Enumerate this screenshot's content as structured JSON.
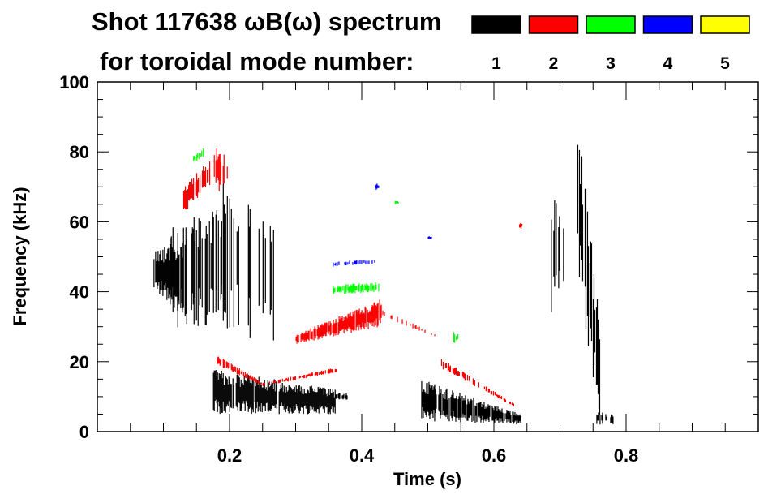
{
  "chart_data": {
    "type": "heatmap",
    "title_line1": "Shot 117638 ωB(ω) spectrum",
    "title_line2": "for toroidal mode number:",
    "xlabel": "Time (s)",
    "ylabel": "Frequency (kHz)",
    "xlim": [
      0.0,
      1.0
    ],
    "ylim": [
      0,
      100
    ],
    "xticks": [
      {
        "v": 0.2,
        "label": "0.2"
      },
      {
        "v": 0.4,
        "label": "0.4"
      },
      {
        "v": 0.6,
        "label": "0.6"
      },
      {
        "v": 0.8,
        "label": "0.8"
      }
    ],
    "yticks": [
      {
        "v": 0,
        "label": "0"
      },
      {
        "v": 20,
        "label": "20"
      },
      {
        "v": 40,
        "label": "40"
      },
      {
        "v": 60,
        "label": "60"
      },
      {
        "v": 80,
        "label": "80"
      },
      {
        "v": 100,
        "label": "100"
      }
    ],
    "legend": [
      {
        "mode": "1",
        "color": "#000000"
      },
      {
        "mode": "2",
        "color": "#ff0000"
      },
      {
        "mode": "3",
        "color": "#00ff00"
      },
      {
        "mode": "4",
        "color": "#0000ff"
      },
      {
        "mode": "5",
        "color": "#ffff00"
      }
    ],
    "features": [
      {
        "mode": "1",
        "t": [
          0.085,
          0.13
        ],
        "lo": [
          40,
          33
        ],
        "hi": [
          52,
          58
        ],
        "density": 0.95
      },
      {
        "mode": "1",
        "t": [
          0.11,
          0.2
        ],
        "lo": [
          30,
          28
        ],
        "hi": [
          58,
          70
        ],
        "density": 0.5
      },
      {
        "mode": "1",
        "t": [
          0.18,
          0.27
        ],
        "lo": [
          30,
          24
        ],
        "hi": [
          74,
          58
        ],
        "density": 0.35
      },
      {
        "mode": "1",
        "t": [
          0.175,
          0.36
        ],
        "lo": [
          5,
          5
        ],
        "hi": [
          18,
          12
        ],
        "density": 0.95
      },
      {
        "mode": "1",
        "t": [
          0.36,
          0.38
        ],
        "lo": [
          9,
          9
        ],
        "hi": [
          11,
          11
        ],
        "density": 0.6
      },
      {
        "mode": "1",
        "t": [
          0.49,
          0.64
        ],
        "lo": [
          3,
          2
        ],
        "hi": [
          15,
          5
        ],
        "density": 0.9
      },
      {
        "mode": "1",
        "t": [
          0.685,
          0.705
        ],
        "lo": [
          32,
          40
        ],
        "hi": [
          68,
          62
        ],
        "density": 0.5
      },
      {
        "mode": "1",
        "t": [
          0.725,
          0.76
        ],
        "lo": [
          45,
          2
        ],
        "hi": [
          95,
          30
        ],
        "density": 0.6
      },
      {
        "mode": "1",
        "t": [
          0.755,
          0.78
        ],
        "lo": [
          2,
          2
        ],
        "hi": [
          6,
          5
        ],
        "density": 0.7
      },
      {
        "mode": "2",
        "t": [
          0.13,
          0.17
        ],
        "lo": [
          62,
          70
        ],
        "hi": [
          70,
          78
        ],
        "density": 0.8
      },
      {
        "mode": "2",
        "t": [
          0.175,
          0.2
        ],
        "lo": [
          68,
          70
        ],
        "hi": [
          82,
          78
        ],
        "density": 0.4
      },
      {
        "mode": "2",
        "t": [
          0.18,
          0.25
        ],
        "lo": [
          19,
          13
        ],
        "hi": [
          22,
          14
        ],
        "density": 0.7
      },
      {
        "mode": "2",
        "t": [
          0.25,
          0.365
        ],
        "lo": [
          13,
          17
        ],
        "hi": [
          14,
          18.5
        ],
        "density": 0.6
      },
      {
        "mode": "2",
        "t": [
          0.3,
          0.43
        ],
        "lo": [
          25,
          30
        ],
        "hi": [
          28,
          38
        ],
        "density": 0.9
      },
      {
        "mode": "2",
        "t": [
          0.43,
          0.51
        ],
        "lo": [
          33,
          27
        ],
        "hi": [
          35,
          28
        ],
        "density": 0.25
      },
      {
        "mode": "2",
        "t": [
          0.52,
          0.63
        ],
        "lo": [
          18,
          7
        ],
        "hi": [
          21,
          8
        ],
        "density": 0.6
      },
      {
        "mode": "2",
        "t": [
          0.638,
          0.642
        ],
        "lo": [
          58,
          58
        ],
        "hi": [
          60,
          60
        ],
        "density": 1
      },
      {
        "mode": "3",
        "t": [
          0.145,
          0.16
        ],
        "lo": [
          77,
          78
        ],
        "hi": [
          79,
          81
        ],
        "density": 0.6
      },
      {
        "mode": "3",
        "t": [
          0.355,
          0.425
        ],
        "lo": [
          39,
          40
        ],
        "hi": [
          42,
          43
        ],
        "density": 0.8
      },
      {
        "mode": "3",
        "t": [
          0.535,
          0.545
        ],
        "lo": [
          24,
          26
        ],
        "hi": [
          29,
          28
        ],
        "density": 0.7
      },
      {
        "mode": "3",
        "t": [
          0.45,
          0.455
        ],
        "lo": [
          65,
          65
        ],
        "hi": [
          66,
          66
        ],
        "density": 1
      },
      {
        "mode": "4",
        "t": [
          0.355,
          0.42
        ],
        "lo": [
          47,
          48
        ],
        "hi": [
          48.5,
          49.5
        ],
        "density": 0.5
      },
      {
        "mode": "4",
        "t": [
          0.42,
          0.425
        ],
        "lo": [
          69,
          69
        ],
        "hi": [
          71,
          71
        ],
        "density": 1
      },
      {
        "mode": "4",
        "t": [
          0.5,
          0.505
        ],
        "lo": [
          55,
          55
        ],
        "hi": [
          56,
          56
        ],
        "density": 1
      }
    ]
  }
}
